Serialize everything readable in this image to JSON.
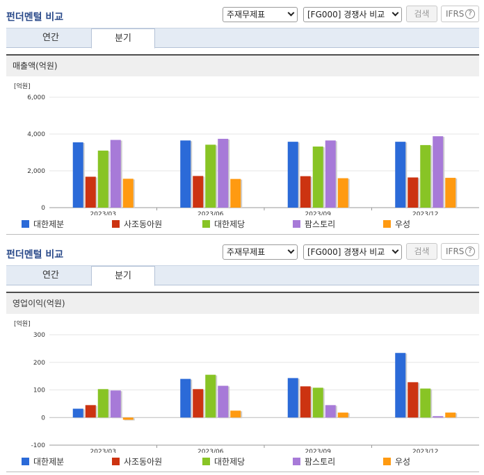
{
  "sections": [
    {
      "title": "펀더멘털 비교",
      "select1": "주재무제표",
      "select2": "[FG000] 경쟁사 비교",
      "search_label": "검색",
      "ifrs_label": "IFRS",
      "help_glyph": "?",
      "tabs": [
        "연간",
        "분기"
      ],
      "active_tab": "분기",
      "panel_title": "매출액(억원)",
      "unit_label": "[억원]"
    },
    {
      "title": "펀더멘털 비교",
      "select1": "주재무제표",
      "select2": "[FG000] 경쟁사 비교",
      "search_label": "검색",
      "ifrs_label": "IFRS",
      "help_glyph": "?",
      "tabs": [
        "연간",
        "분기"
      ],
      "active_tab": "분기",
      "panel_title": "영업이익(억원)",
      "unit_label": "[억원]"
    }
  ],
  "chart_data": [
    {
      "type": "bar",
      "title": "매출액(억원)",
      "unit": "[억원]",
      "categories": [
        "2023/03",
        "2023/06",
        "2023/09",
        "2023/12"
      ],
      "ylim": [
        0,
        6000
      ],
      "yticks": [
        0,
        2000,
        4000,
        6000
      ],
      "ytick_labels": [
        "0",
        "2,000",
        "4,000",
        "6,000"
      ],
      "grid": true,
      "legend_position": "bottom",
      "series": [
        {
          "name": "대한제분",
          "color": "#2b6ad8",
          "values": [
            3550,
            3650,
            3580,
            3580
          ]
        },
        {
          "name": "사조동아원",
          "color": "#cc3311",
          "values": [
            1680,
            1720,
            1710,
            1640
          ]
        },
        {
          "name": "대한제당",
          "color": "#88c425",
          "values": [
            3100,
            3420,
            3320,
            3400
          ]
        },
        {
          "name": "팜스토리",
          "color": "#a77ad8",
          "values": [
            3680,
            3740,
            3650,
            3880
          ]
        },
        {
          "name": "우성",
          "color": "#ff9a11",
          "values": [
            1570,
            1560,
            1600,
            1620
          ]
        }
      ]
    },
    {
      "type": "bar",
      "title": "영업이익(억원)",
      "unit": "[억원]",
      "categories": [
        "2023/03",
        "2023/06",
        "2023/09",
        "2023/12"
      ],
      "ylim": [
        -100,
        300
      ],
      "yticks": [
        -100,
        0,
        100,
        200,
        300
      ],
      "ytick_labels": [
        "-100",
        "0",
        "100",
        "200",
        "300"
      ],
      "grid": true,
      "legend_position": "bottom",
      "series": [
        {
          "name": "대한제분",
          "color": "#2b6ad8",
          "values": [
            32,
            140,
            143,
            234
          ]
        },
        {
          "name": "사조동아원",
          "color": "#cc3311",
          "values": [
            45,
            103,
            113,
            128
          ]
        },
        {
          "name": "대한제당",
          "color": "#88c425",
          "values": [
            103,
            155,
            108,
            105
          ]
        },
        {
          "name": "팜스토리",
          "color": "#a77ad8",
          "values": [
            98,
            115,
            45,
            5
          ]
        },
        {
          "name": "우성",
          "color": "#ff9a11",
          "values": [
            -8,
            25,
            18,
            18
          ]
        }
      ]
    }
  ]
}
